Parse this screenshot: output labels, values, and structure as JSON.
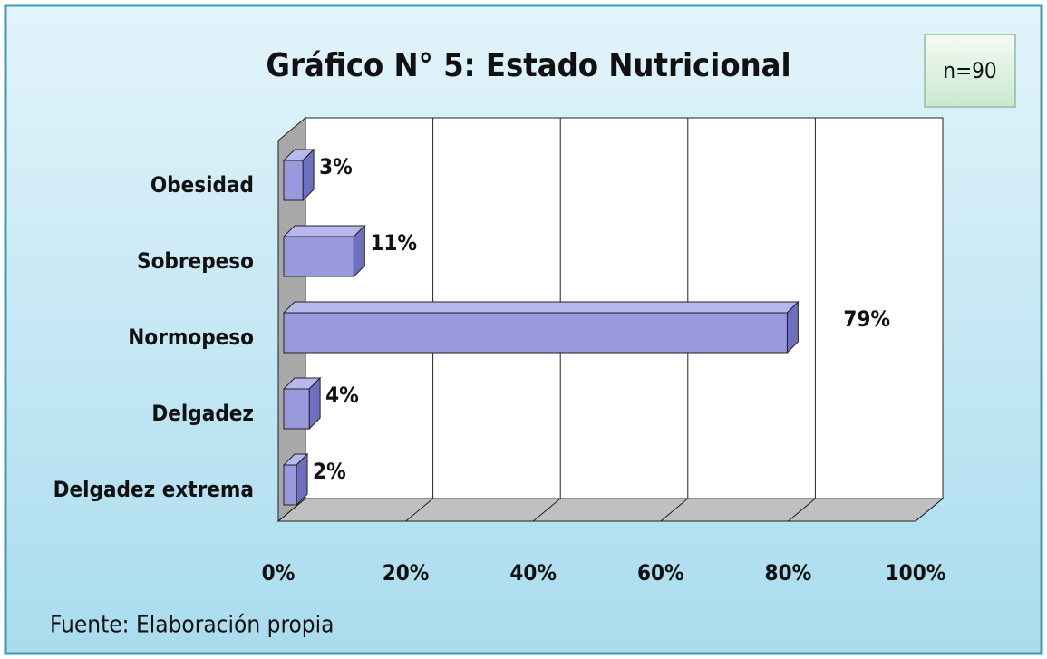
{
  "chart_data": {
    "type": "bar3d_horizontal",
    "title": "Gráfico N° 5: Estado Nutricional",
    "annotations": [
      "n=90"
    ],
    "source": "Fuente: Elaboración propia",
    "categories": [
      "Obesidad",
      "Sobrepeso",
      "Normopeso",
      "Delgadez",
      "Delgadez extrema"
    ],
    "values": [
      3,
      11,
      79,
      4,
      2
    ],
    "value_labels": [
      "3%",
      "11%",
      "79%",
      "4%",
      "2%"
    ],
    "color": "#9999dd",
    "xlim": [
      0,
      100
    ],
    "xticks": [
      {
        "value": 0,
        "label": "0%"
      },
      {
        "value": 20,
        "label": "20%"
      },
      {
        "value": 40,
        "label": "40%"
      },
      {
        "value": 60,
        "label": "60%"
      },
      {
        "value": 80,
        "label": "80%"
      },
      {
        "value": 100,
        "label": "100%"
      }
    ],
    "grid": true
  }
}
